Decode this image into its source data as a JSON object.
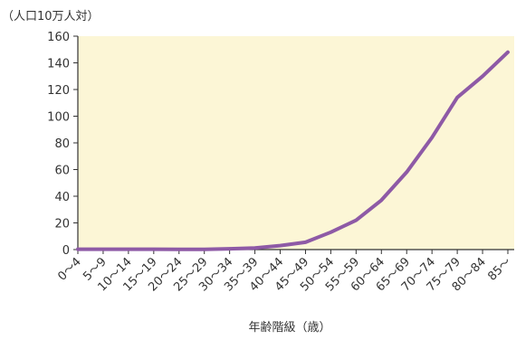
{
  "chart_data": {
    "type": "line",
    "title": "",
    "ylabel": "（人口10万人対）",
    "xlabel": "年齢階級（歳）",
    "ylim": [
      0,
      160
    ],
    "yticks": [
      0,
      20,
      40,
      60,
      80,
      100,
      120,
      140,
      160
    ],
    "grid": false,
    "legend": "none",
    "categories": [
      "0～4",
      "5～9",
      "10～14",
      "15～19",
      "20～24",
      "25～29",
      "30～34",
      "35～39",
      "40～44",
      "45～49",
      "50～54",
      "55～59",
      "60～64",
      "65～69",
      "70～74",
      "75～79",
      "80～84",
      "85～"
    ],
    "series": [
      {
        "values": [
          0.3,
          0.3,
          0.3,
          0.3,
          0.2,
          0.2,
          0.6,
          1.2,
          3,
          5.5,
          13,
          22,
          37,
          58,
          84,
          114,
          130,
          148
        ]
      }
    ]
  },
  "colors": {
    "plot_background": "#fcf6d6",
    "line": "#8e5aa6",
    "axis": "#333333",
    "text": "#333333"
  }
}
